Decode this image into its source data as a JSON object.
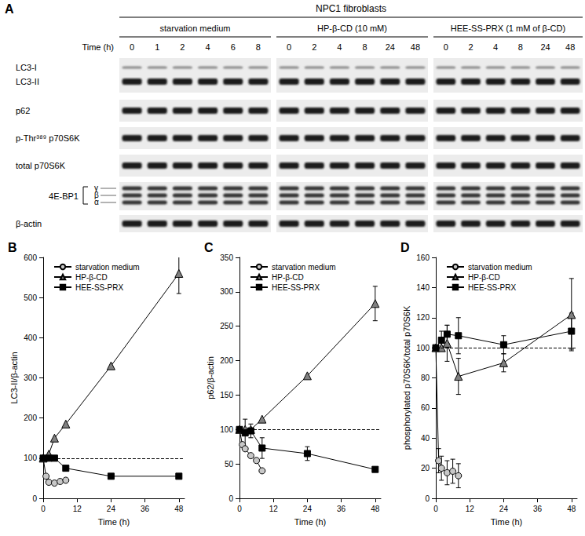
{
  "blot": {
    "panel": "A",
    "header": "NPC1 fibroblasts",
    "time_label": "Time (h)",
    "groups": [
      {
        "label": "starvation medium",
        "times": [
          0,
          1,
          2,
          4,
          6,
          8
        ]
      },
      {
        "label": "HP-β-CD (10 mM)",
        "times": [
          0,
          2,
          4,
          8,
          24,
          48
        ]
      },
      {
        "label": "HEE-SS-PRX (1 mM of β-CD)",
        "times": [
          0,
          2,
          4,
          8,
          24,
          48
        ]
      }
    ],
    "rows": [
      {
        "labels": [
          "LC3-I",
          "LC3-II"
        ]
      },
      {
        "labels": [
          "p62"
        ]
      },
      {
        "labels": [
          "p-Thr³⁸⁹ p70S6K"
        ]
      },
      {
        "labels": [
          "total p70S6K"
        ]
      },
      {
        "labels": [
          "4E-BP1"
        ],
        "isoforms": [
          "γ",
          "β",
          "α"
        ]
      },
      {
        "labels": [
          "β-actin"
        ]
      }
    ]
  },
  "chart_data": [
    {
      "panel": "B",
      "type": "line",
      "x_label": "Time (h)",
      "y_label": "LC3-II/β-actin",
      "xlim": [
        0,
        50
      ],
      "xticks": [
        0,
        12,
        24,
        36,
        48
      ],
      "ylim": [
        0,
        600
      ],
      "yticks": [
        0,
        100,
        200,
        300,
        400,
        500,
        600
      ],
      "reference": 100,
      "grid": false,
      "legend": "upper left",
      "series": [
        {
          "name": "starvation medium",
          "color": "#c8c8c8",
          "marker": "circle",
          "x": [
            0,
            1,
            2,
            4,
            6,
            8
          ],
          "values": [
            100,
            55,
            40,
            38,
            42,
            45
          ],
          "errors": [
            null,
            null,
            null,
            null,
            null,
            null
          ]
        },
        {
          "name": "HP-β-CD",
          "color": "#808080",
          "marker": "triangle",
          "x": [
            0,
            2,
            4,
            8,
            24,
            48
          ],
          "values": [
            100,
            110,
            150,
            185,
            330,
            560
          ],
          "errors": [
            null,
            null,
            null,
            null,
            null,
            50
          ]
        },
        {
          "name": "HEE-SS-PRX",
          "color": "#000000",
          "marker": "square",
          "x": [
            0,
            2,
            4,
            8,
            24,
            48
          ],
          "values": [
            100,
            100,
            100,
            75,
            55,
            55
          ],
          "errors": [
            null,
            null,
            null,
            null,
            null,
            null
          ]
        }
      ]
    },
    {
      "panel": "C",
      "type": "line",
      "x_label": "Time (h)",
      "y_label": "p62/β-actin",
      "xlim": [
        0,
        50
      ],
      "xticks": [
        0,
        12,
        24,
        36,
        48
      ],
      "ylim": [
        0,
        350
      ],
      "yticks": [
        0,
        50,
        100,
        150,
        200,
        250,
        300,
        350
      ],
      "reference": 100,
      "grid": false,
      "legend": "upper left",
      "series": [
        {
          "name": "starvation medium",
          "color": "#c8c8c8",
          "marker": "circle",
          "x": [
            0,
            1,
            2,
            4,
            6,
            8
          ],
          "values": [
            100,
            78,
            72,
            62,
            55,
            40
          ],
          "errors": [
            null,
            null,
            null,
            null,
            null,
            null
          ]
        },
        {
          "name": "HP-β-CD",
          "color": "#808080",
          "marker": "triangle",
          "x": [
            0,
            2,
            4,
            8,
            24,
            48
          ],
          "values": [
            100,
            100,
            100,
            115,
            178,
            283
          ],
          "errors": [
            null,
            null,
            null,
            null,
            null,
            25
          ]
        },
        {
          "name": "HEE-SS-PRX",
          "color": "#000000",
          "marker": "square",
          "x": [
            0,
            2,
            4,
            8,
            24,
            48
          ],
          "values": [
            100,
            95,
            98,
            73,
            65,
            42
          ],
          "errors": [
            null,
            20,
            10,
            15,
            10,
            null
          ]
        }
      ]
    },
    {
      "panel": "D",
      "type": "line",
      "x_label": "Time (h)",
      "y_label": "phosphorylated p70S6K/total p70S6K",
      "xlim": [
        0,
        50
      ],
      "xticks": [
        0,
        12,
        24,
        36,
        48
      ],
      "ylim": [
        0,
        160
      ],
      "yticks": [
        0,
        20,
        40,
        60,
        80,
        100,
        120,
        140,
        160
      ],
      "reference": 100,
      "grid": false,
      "legend": "upper left",
      "series": [
        {
          "name": "starvation medium",
          "color": "#c8c8c8",
          "marker": "circle",
          "x": [
            0,
            1,
            2,
            4,
            6,
            8
          ],
          "values": [
            100,
            25,
            20,
            17,
            18,
            15
          ],
          "errors": [
            null,
            8,
            8,
            8,
            8,
            8
          ]
        },
        {
          "name": "HP-β-CD",
          "color": "#808080",
          "marker": "triangle",
          "x": [
            0,
            2,
            4,
            8,
            24,
            48
          ],
          "values": [
            100,
            100,
            103,
            81,
            90,
            122
          ],
          "errors": [
            null,
            null,
            12,
            12,
            6,
            24
          ]
        },
        {
          "name": "HEE-SS-PRX",
          "color": "#000000",
          "marker": "square",
          "x": [
            0,
            2,
            4,
            8,
            24,
            48
          ],
          "values": [
            100,
            105,
            109,
            108,
            102,
            111
          ],
          "errors": [
            null,
            6,
            6,
            12,
            6,
            12
          ]
        }
      ]
    }
  ]
}
